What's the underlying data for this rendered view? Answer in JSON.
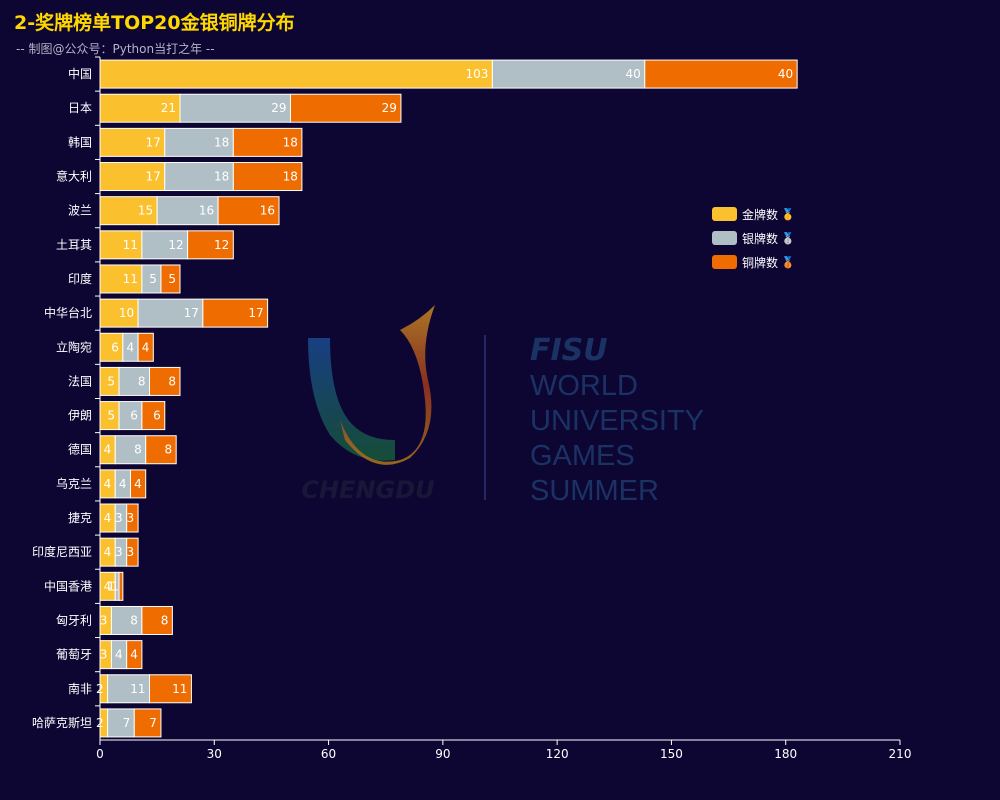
{
  "title": "2-奖牌榜单TOP20金银铜牌分布",
  "subtitle": "-- 制图@公众号：Python当打之年 --",
  "watermark": {
    "left_text": "CHENGDU",
    "brand": "FISU",
    "lines": [
      "WORLD",
      "UNIVERSITY",
      "GAMES",
      "SUMMER"
    ]
  },
  "chart_data": {
    "type": "bar",
    "orientation": "horizontal",
    "stacked": true,
    "categories": [
      "中国",
      "日本",
      "韩国",
      "意大利",
      "波兰",
      "土耳其",
      "印度",
      "中华台北",
      "立陶宛",
      "法国",
      "伊朗",
      "德国",
      "乌克兰",
      "捷克",
      "印度尼西亚",
      "中国香港",
      "匈牙利",
      "葡萄牙",
      "南非",
      "哈萨克斯坦"
    ],
    "series": [
      {
        "name": "金牌数",
        "medal": "🥇",
        "color": "#fbc02d",
        "values": [
          103,
          21,
          17,
          17,
          15,
          11,
          11,
          10,
          6,
          5,
          5,
          4,
          4,
          4,
          4,
          4,
          3,
          3,
          2,
          2
        ]
      },
      {
        "name": "银牌数",
        "medal": "🥈",
        "color": "#b0bec5",
        "values": [
          40,
          29,
          18,
          18,
          16,
          12,
          5,
          17,
          4,
          8,
          6,
          8,
          4,
          3,
          3,
          1,
          8,
          4,
          11,
          7
        ]
      },
      {
        "name": "铜牌数",
        "medal": "🥉",
        "color": "#ef6c00",
        "values": [
          40,
          29,
          18,
          18,
          16,
          12,
          5,
          17,
          4,
          8,
          6,
          8,
          4,
          3,
          3,
          1,
          8,
          4,
          11,
          7
        ]
      }
    ],
    "xlim": [
      0,
      210
    ],
    "xticks": [
      0,
      30,
      60,
      90,
      120,
      150,
      180,
      210
    ],
    "grid": false,
    "legend_position": "right"
  }
}
